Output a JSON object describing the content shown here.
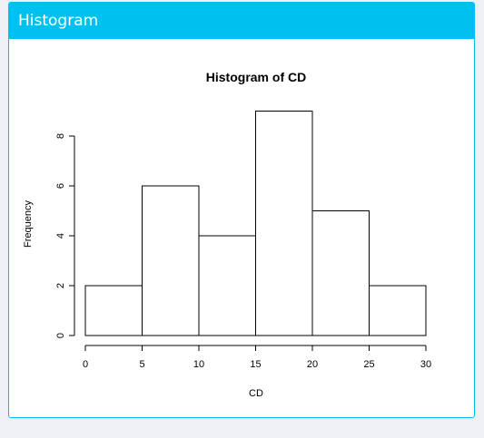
{
  "panel": {
    "title": "Histogram",
    "header_color": "#00c0ef"
  },
  "chart_data": {
    "type": "bar",
    "title": "Histogram of CD",
    "xlabel": "CD",
    "ylabel": "Frequency",
    "bins": [
      {
        "from": 0,
        "to": 5,
        "count": 2
      },
      {
        "from": 5,
        "to": 10,
        "count": 6
      },
      {
        "from": 10,
        "to": 15,
        "count": 4
      },
      {
        "from": 15,
        "to": 20,
        "count": 9
      },
      {
        "from": 20,
        "to": 25,
        "count": 5
      },
      {
        "from": 25,
        "to": 30,
        "count": 2
      }
    ],
    "xlim": [
      0,
      30
    ],
    "ylim": [
      0,
      9
    ],
    "x_ticks": [
      "0",
      "5",
      "10",
      "15",
      "20",
      "25",
      "30"
    ],
    "y_ticks": [
      "0",
      "2",
      "4",
      "6",
      "8"
    ],
    "grid": false,
    "bar_fill": "#ffffff",
    "bar_stroke": "#000000"
  }
}
